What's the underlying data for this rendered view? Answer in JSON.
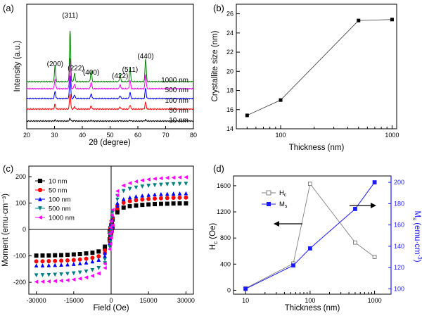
{
  "chart_data": [
    {
      "panel": "(a)",
      "type": "line",
      "xlabel": "2θ (degree)",
      "ylabel": "Intensity (a.u.)",
      "xlim": [
        20,
        80
      ],
      "xticks": [
        20,
        30,
        40,
        50,
        60,
        70,
        80
      ],
      "peaks": [
        {
          "label": "(200)",
          "x": 30.2,
          "h": 12
        },
        {
          "label": "(311)",
          "x": 35.6,
          "h": 38
        },
        {
          "label": "(222)",
          "x": 37.2,
          "h": 6
        },
        {
          "label": "(400)",
          "x": 43.2,
          "h": 8
        },
        {
          "label": "(422)",
          "x": 53.6,
          "h": 5
        },
        {
          "label": "(511)",
          "x": 57.2,
          "h": 10
        },
        {
          "label": "(440)",
          "x": 62.8,
          "h": 17
        }
      ],
      "series": [
        {
          "name": "10 nm",
          "color": "#000000",
          "scale": 0.05
        },
        {
          "name": "50 nm",
          "color": "#ff0000",
          "scale": 0.3
        },
        {
          "name": "100 nm",
          "color": "#0000ff",
          "scale": 0.45
        },
        {
          "name": "500 nm",
          "color": "#ff00ff",
          "scale": 0.6
        },
        {
          "name": "1000 nm",
          "color": "#008000",
          "scale": 1.0
        }
      ]
    },
    {
      "panel": "(b)",
      "type": "line",
      "xlabel": "Thickness (nm)",
      "ylabel": "Crystallite size (nm)",
      "xscale": "log",
      "xlim": [
        40,
        1100
      ],
      "ylim": [
        14,
        27
      ],
      "xticks": [
        100,
        1000
      ],
      "yticks": [
        14,
        16,
        18,
        20,
        22,
        24,
        26
      ],
      "x": [
        50,
        100,
        500,
        1000
      ],
      "y": [
        15.4,
        17.0,
        25.3,
        25.4
      ]
    },
    {
      "panel": "(c)",
      "type": "line",
      "xlabel": "Field (Oe)",
      "ylabel": "Moment (emu·cm⁻³)",
      "xlim": [
        -33000,
        33000
      ],
      "ylim": [
        -245,
        240
      ],
      "xticks": [
        -30000,
        -15000,
        0,
        15000,
        30000
      ],
      "yticks": [
        -200,
        -100,
        0,
        100,
        200
      ],
      "series": [
        {
          "name": "10 nm",
          "color": "#000000",
          "marker": "square",
          "ms": 100
        },
        {
          "name": "50 nm",
          "color": "#ff0000",
          "marker": "circle",
          "ms": 122
        },
        {
          "name": "100 nm",
          "color": "#0000ff",
          "marker": "triangle-up",
          "ms": 138
        },
        {
          "name": "500 nm",
          "color": "#008080",
          "marker": "triangle-down",
          "ms": 175
        },
        {
          "name": "1000 nm",
          "color": "#ff00ff",
          "marker": "triangle-left",
          "ms": 200
        }
      ]
    },
    {
      "panel": "(d)",
      "type": "line",
      "xlabel": "Thickness (nm)",
      "xscale": "log",
      "xlim": [
        6.5,
        1800
      ],
      "xticks": [
        10,
        100,
        1000
      ],
      "left": {
        "ylabel": "Hc (Oe)",
        "ylim": [
          -60,
          1750
        ],
        "yticks": [
          0,
          400,
          800,
          1200,
          1600
        ],
        "series": {
          "name": "Hc",
          "color": "#808080",
          "x": [
            10,
            55,
            100,
            500,
            1000
          ],
          "y": [
            30,
            410,
            1630,
            730,
            510
          ]
        }
      },
      "right": {
        "ylabel": "Ms (emu·cm⁻³)",
        "ylim": [
          95,
          206
        ],
        "yticks": [
          100,
          120,
          140,
          160,
          180,
          200
        ],
        "color": "#1a1aff",
        "series": {
          "name": "Ms",
          "color": "#1a1aff",
          "x": [
            10,
            55,
            100,
            500,
            1000
          ],
          "y": [
            100,
            122,
            138,
            175,
            200
          ]
        }
      }
    }
  ]
}
